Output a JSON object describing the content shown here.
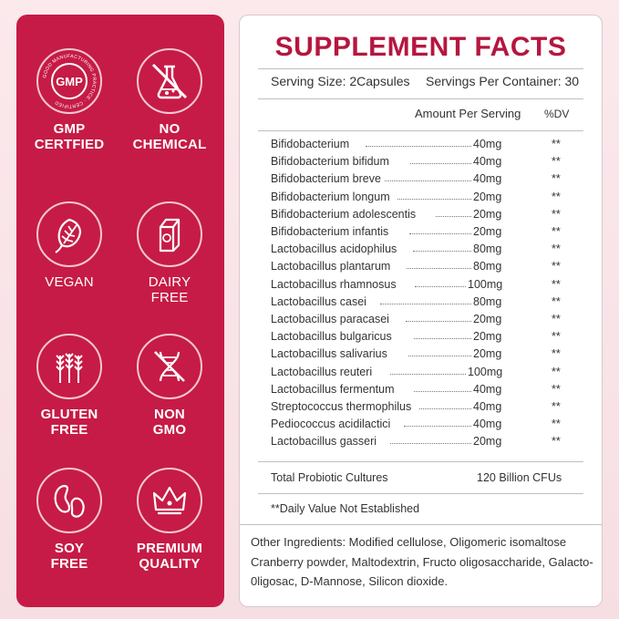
{
  "badges": [
    {
      "icon": "gmp-certified-icon",
      "label": "GMP CERTFIED",
      "seal_text": "GMP",
      "ring_text": "GOOD MANUFACTURING PRACTICE · CERTIFIED"
    },
    {
      "icon": "no-chemical-icon",
      "label": "NO CHEMICAL"
    },
    {
      "icon": "vegan-leaf-icon",
      "label": "VEGAN"
    },
    {
      "icon": "milk-carton-icon",
      "label": "DAIRY FREE"
    },
    {
      "icon": "wheat-icon",
      "label": "GLUTEN FREE"
    },
    {
      "icon": "dna-icon",
      "label": "NON GMO"
    },
    {
      "icon": "soybean-icon",
      "label": "SOY FREE"
    },
    {
      "icon": "crown-icon",
      "label": "PREMIUM QUALITY"
    }
  ],
  "facts": {
    "title": "SUPPLEMENT FACTS",
    "serving_size": "Serving Size: 2Capsules",
    "servings_per_container": "Servings Per Container: 30",
    "amount_header": "Amount Per Serving",
    "dv_header": "%DV",
    "ingredients": [
      {
        "name": "Bifidobacterium",
        "amount": "40mg",
        "dv": "**"
      },
      {
        "name": "Bifidobacterium bifidum",
        "amount": "40mg",
        "dv": "**"
      },
      {
        "name": "Bifidobacterium breve",
        "amount": "40mg",
        "dv": "**"
      },
      {
        "name": "Bifidobacterium longum",
        "amount": "20mg",
        "dv": "**"
      },
      {
        "name": "Bifidobacterium adolescentis",
        "amount": "20mg",
        "dv": "**"
      },
      {
        "name": "Bifidobacterium infantis",
        "amount": "20mg",
        "dv": "**"
      },
      {
        "name": "Lactobacillus acidophilus",
        "amount": "80mg",
        "dv": "**"
      },
      {
        "name": "Lactobacillus plantarum",
        "amount": "80mg",
        "dv": "**"
      },
      {
        "name": "Lactobacillus rhamnosus",
        "amount": "100mg",
        "dv": "**"
      },
      {
        "name": "Lactobacillus casei",
        "amount": "80mg",
        "dv": "**"
      },
      {
        "name": "Lactobacillus paracasei",
        "amount": "20mg",
        "dv": "**"
      },
      {
        "name": "Lactobacillus bulgaricus",
        "amount": "20mg",
        "dv": "**"
      },
      {
        "name": "Lactobacillus salivarius",
        "amount": "20mg",
        "dv": "**"
      },
      {
        "name": "Lactobacillus reuteri",
        "amount": "100mg",
        "dv": "**"
      },
      {
        "name": "Lactobacillus fermentum",
        "amount": "40mg",
        "dv": "**"
      },
      {
        "name": "Streptococcus thermophilus",
        "amount": "40mg",
        "dv": "**"
      },
      {
        "name": "Pediococcus acidilactici",
        "amount": "40mg",
        "dv": "**"
      },
      {
        "name": "Lactobacillus gasseri",
        "amount": "20mg",
        "dv": "**"
      }
    ],
    "total_label": "Total Probiotic Cultures",
    "total_value": "120 Billion CFUs",
    "footnote": "**Daily Value Not Established",
    "other_ingredients": "Other Ingredients: Modified cellulose, Oligomeric isomaltose Cranberry powder, Maltodextrin, Fructo oligosaccharide, Galacto-0ligosac, D-Mannose, Silicon dioxide."
  },
  "colors": {
    "brand": "#c61b46",
    "title": "#b5163f"
  }
}
